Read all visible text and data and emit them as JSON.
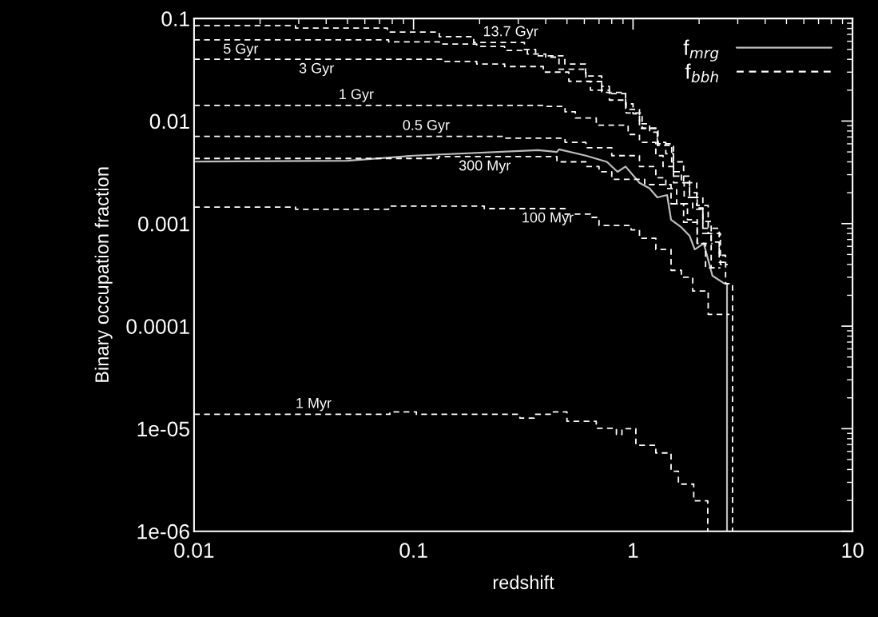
{
  "chart_data": {
    "type": "step",
    "xlabel": "redshift",
    "ylabel": "Binary occupation fraction",
    "log": "xy",
    "grid": false,
    "legend": "top right",
    "marker": "none",
    "xlim": [
      0.01,
      10
    ],
    "xticks": [
      {
        "value": 0.01,
        "label": "0.01"
      },
      {
        "value": 0.1,
        "label": "0.1"
      },
      {
        "value": 1,
        "label": "1"
      },
      {
        "value": 10,
        "label": "10"
      }
    ],
    "ylim": [
      1e-06,
      0.1
    ],
    "yticks": [
      {
        "value": 1e-06,
        "label": "1e-06"
      },
      {
        "value": 1e-05,
        "label": "1e-05"
      },
      {
        "value": 0.0001,
        "label": "0.0001"
      },
      {
        "value": 0.001,
        "label": "0.001"
      },
      {
        "value": 0.01,
        "label": "0.01"
      },
      {
        "value": 0.1,
        "label": "0.1"
      }
    ],
    "series": [
      {
        "name": "f$_{mrg}$",
        "type": "line",
        "line_style": "solid",
        "color": "#bdbdbd",
        "x": [
          0.01,
          0.05,
          0.1,
          0.37,
          0.45,
          0.46,
          0.61,
          0.76,
          0.85,
          0.925,
          1.07,
          1.19,
          1.29,
          1.43,
          1.49,
          1.66,
          1.81,
          1.91,
          2.1,
          2.3,
          2.61,
          2.68,
          2.68
        ],
        "values": [
          0.00402,
          0.0041,
          0.0046,
          0.0052,
          0.005,
          0.0053,
          0.0046,
          0.004,
          0.0032,
          0.0036,
          0.0025,
          0.0022,
          0.0018,
          0.0019,
          0.00109,
          0.00092,
          0.00076,
          0.00056,
          0.00064,
          0.00031,
          0.00026,
          0.00026,
          1e-06
        ]
      },
      {
        "name": "f$_{bbh}$",
        "line_style": "dashed",
        "color": "#ffffff",
        "x": [
          0.01,
          0.029,
          0.076,
          0.131,
          0.188,
          0.32,
          0.36,
          0.489,
          0.608,
          0.72,
          0.78,
          0.925,
          1.0,
          1.07,
          1.19,
          1.29,
          1.41,
          1.53,
          1.66,
          1.81,
          1.96,
          2.08,
          2.27,
          2.47,
          2.64,
          2.84
        ],
        "values": [
          0.085,
          0.0807,
          0.0737,
          0.0666,
          0.0584,
          0.05,
          0.0433,
          0.036,
          0.0275,
          0.0218,
          0.0185,
          0.0147,
          0.0118,
          0.0094,
          0.0078,
          0.0062,
          0.0048,
          0.0032,
          0.0025,
          0.002,
          0.00142,
          0.00105,
          0.00066,
          0.00049,
          0.00026,
          1e-06
        ]
      },
      {
        "line_style": "dashed",
        "color": "#ffffff",
        "x": [
          0.01,
          0.077,
          0.131,
          0.194,
          0.26,
          0.33,
          0.4,
          0.46,
          0.61,
          0.72,
          0.925,
          1.07,
          1.29,
          1.53,
          1.81,
          2.08,
          2.47,
          2.7
        ],
        "values": [
          0.062,
          0.0591,
          0.0564,
          0.0534,
          0.0488,
          0.045,
          0.042,
          0.032,
          0.0243,
          0.019,
          0.013,
          0.0085,
          0.0058,
          0.0029,
          0.0018,
          0.0009,
          0.00042,
          0.00042
        ]
      },
      {
        "line_style": "dashed",
        "color": "#ffffff",
        "x": [
          0.01,
          0.135,
          0.194,
          0.26,
          0.39,
          0.51,
          0.64,
          0.78,
          0.93,
          1.1,
          1.3,
          1.5,
          1.7,
          1.95,
          2.2,
          2.5,
          2.7
        ],
        "values": [
          0.04,
          0.0382,
          0.036,
          0.034,
          0.03,
          0.0244,
          0.02,
          0.016,
          0.012,
          0.0085,
          0.006,
          0.004,
          0.0025,
          0.0015,
          0.0008,
          0.0004,
          0.0004
        ]
      },
      {
        "line_style": "dashed",
        "color": "#ffffff",
        "x": [
          0.01,
          0.4,
          0.49,
          0.546,
          0.68,
          0.95,
          1.07,
          1.27,
          1.37,
          1.53,
          1.71,
          1.87,
          2.08,
          2.27,
          2.5
        ],
        "values": [
          0.0142,
          0.0139,
          0.0123,
          0.0107,
          0.0091,
          0.0074,
          0.0062,
          0.0046,
          0.0036,
          0.0025,
          0.0018,
          0.00138,
          0.0008,
          0.00037,
          0.00037
        ]
      },
      {
        "line_style": "dashed",
        "color": "#ffffff",
        "x": [
          0.01,
          0.26,
          0.49,
          0.61,
          0.8,
          1.07,
          1.27,
          1.41,
          1.58,
          1.77,
          1.96,
          2.14,
          2.4
        ],
        "values": [
          0.00708,
          0.0068,
          0.0062,
          0.0055,
          0.0046,
          0.0036,
          0.0028,
          0.0022,
          0.00156,
          0.00109,
          0.00064,
          0.00037,
          0.00037
        ]
      },
      {
        "line_style": "dashed",
        "color": "#ffffff",
        "x": [
          0.01,
          0.13,
          0.45,
          0.61,
          0.7,
          0.8,
          1.13,
          1.49,
          1.7,
          1.96,
          2.3
        ],
        "values": [
          0.00432,
          0.0045,
          0.004,
          0.0036,
          0.0032,
          0.0027,
          0.0024,
          0.00156,
          0.00103,
          0.00064,
          0.00064
        ]
      },
      {
        "line_style": "dashed",
        "color": "#ffffff",
        "x": [
          0.01,
          0.029,
          0.077,
          0.21,
          0.49,
          0.64,
          0.7,
          0.98,
          1.07,
          1.27,
          1.49,
          1.66,
          1.87,
          2.2,
          2.75
        ],
        "values": [
          0.00145,
          0.00138,
          0.00148,
          0.0014,
          0.00124,
          0.00115,
          0.00096,
          0.00087,
          0.00072,
          0.00056,
          0.00035,
          0.0003,
          0.00022,
          0.00013,
          0.00013
        ]
      },
      {
        "line_style": "dashed",
        "color": "#ffffff",
        "x": [
          0.01,
          0.078,
          0.103,
          0.305,
          0.355,
          0.43,
          0.5,
          0.68,
          0.84,
          0.89,
          1.03,
          1.27,
          1.49,
          1.61,
          1.89,
          2.19
        ],
        "values": [
          1.38e-05,
          1.46e-05,
          1.38e-05,
          1.27e-05,
          1.38e-05,
          1.46e-05,
          1.18e-05,
          1.01e-05,
          8.8e-06,
          1e-05,
          6.9e-06,
          5.8e-06,
          3.84e-06,
          2.88e-06,
          1.98e-06,
          1e-06
        ]
      }
    ],
    "annotations": [
      {
        "text": "13.7 Gyr",
        "x": 0.2,
        "y": 0.0584
      },
      {
        "text": "5 Gyr",
        "x": 0.0131,
        "y": 0.062
      },
      {
        "text": "3 Gyr",
        "x": 0.029,
        "y": 0.04
      },
      {
        "text": "1 Gyr",
        "x": 0.044,
        "y": 0.0142
      },
      {
        "text": "0.5 Gyr",
        "x": 0.086,
        "y": 0.0071
      },
      {
        "text": "300 Myr",
        "x": 0.155,
        "y": 0.0045
      },
      {
        "text": "100 Myr",
        "x": 0.3,
        "y": 0.0014
      },
      {
        "text": "1 Myr",
        "x": 0.028,
        "y": 1.38e-05
      }
    ]
  }
}
